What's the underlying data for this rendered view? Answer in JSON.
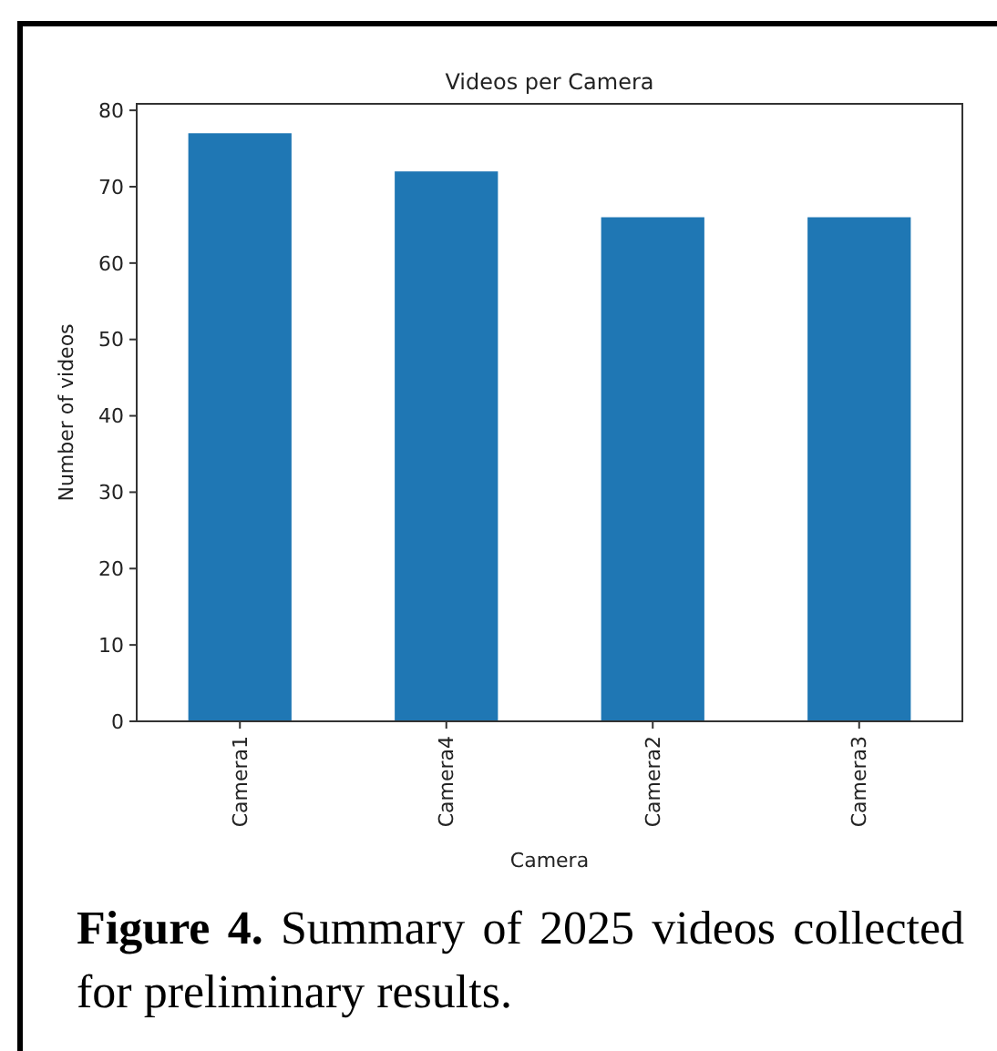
{
  "chart_data": {
    "type": "bar",
    "title": "Videos per Camera",
    "xlabel": "Camera",
    "ylabel": "Number of videos",
    "categories": [
      "Camera1",
      "Camera4",
      "Camera2",
      "Camera3"
    ],
    "values": [
      77,
      72,
      66,
      66
    ],
    "color": "#1f77b4",
    "ylim": [
      0,
      80.85
    ],
    "yticks": [
      0,
      10,
      20,
      30,
      40,
      50,
      60,
      70,
      80
    ],
    "grid": false,
    "annotations": [
      "Figure 4. Summary of 2025 videos collected for preliminary results."
    ]
  }
}
